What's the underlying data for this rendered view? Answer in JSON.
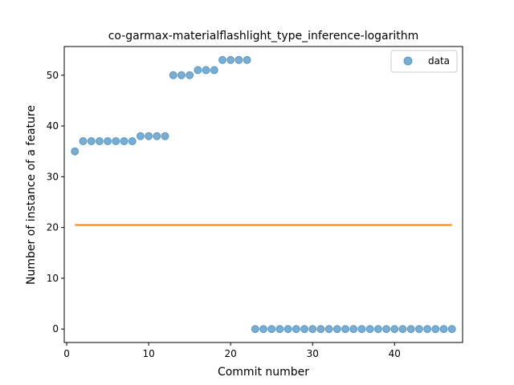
{
  "chart_data": {
    "type": "scatter",
    "title": "co-garmax-materialflashlight_type_inference-logarithm",
    "xlabel": "Commit number",
    "ylabel": "Number of instance of a feature",
    "xlim": [
      -0.3,
      48.3
    ],
    "ylim": [
      -2.65,
      55.65
    ],
    "xticks": [
      0,
      10,
      20,
      30,
      40
    ],
    "yticks": [
      0,
      10,
      20,
      30,
      40,
      50
    ],
    "grid": false,
    "legend_position": "top-right",
    "series": [
      {
        "name": "data",
        "kind": "scatter",
        "color": "#1f77b4",
        "x": [
          1,
          2,
          3,
          4,
          5,
          6,
          7,
          8,
          9,
          10,
          11,
          12,
          13,
          14,
          15,
          16,
          17,
          18,
          19,
          20,
          21,
          22,
          23,
          24,
          25,
          26,
          27,
          28,
          29,
          30,
          31,
          32,
          33,
          34,
          35,
          36,
          37,
          38,
          39,
          40,
          41,
          42,
          43,
          44,
          45,
          46,
          47
        ],
        "y": [
          35,
          37,
          37,
          37,
          37,
          37,
          37,
          37,
          38,
          38,
          38,
          38,
          50,
          50,
          50,
          51,
          51,
          51,
          53,
          53,
          53,
          53,
          0,
          0,
          0,
          0,
          0,
          0,
          0,
          0,
          0,
          0,
          0,
          0,
          0,
          0,
          0,
          0,
          0,
          0,
          0,
          0,
          0,
          0,
          0,
          0,
          0
        ]
      },
      {
        "kind": "line",
        "color": "#ff7f0e",
        "x": [
          1,
          47
        ],
        "y": [
          20.5,
          20.5
        ]
      }
    ]
  }
}
